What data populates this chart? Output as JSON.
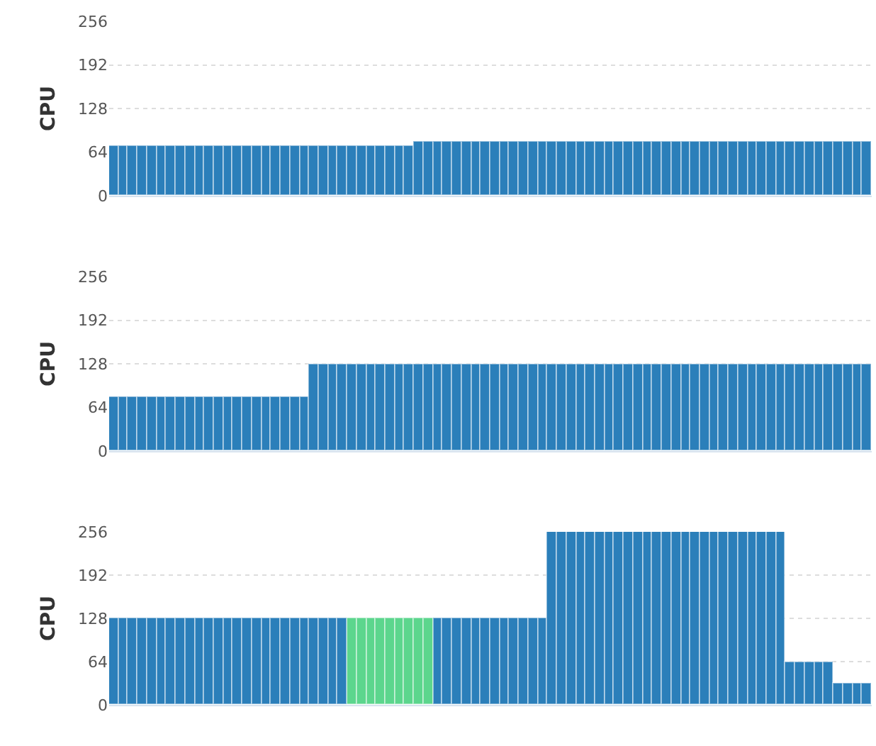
{
  "chart_data": [
    {
      "type": "bar",
      "ylabel": "CPU",
      "ylim": [
        0,
        256
      ],
      "yticks": [
        0,
        64,
        128,
        192,
        256
      ],
      "grid": "y",
      "tick_labels": "y",
      "categories": [
        null,
        null,
        null,
        null,
        null,
        null,
        null,
        null,
        null,
        null,
        null,
        null,
        null,
        null,
        null,
        null,
        null,
        null,
        null,
        null,
        null,
        null,
        null,
        null,
        null,
        null,
        null,
        null,
        null,
        null,
        null,
        null,
        null,
        null,
        null,
        null,
        null,
        null,
        null,
        null,
        null,
        null,
        null,
        null,
        null,
        null,
        null,
        null,
        null,
        null,
        null,
        null,
        null,
        null,
        null,
        null,
        null,
        null,
        null,
        null,
        null,
        null,
        null,
        null,
        null,
        null,
        null,
        null,
        null,
        null,
        null,
        null,
        null,
        null,
        null,
        null,
        null,
        null,
        null,
        null
      ],
      "series": [
        {
          "color": "#2b7fba",
          "values": [
            72,
            72,
            72,
            72,
            72,
            72,
            72,
            72,
            72,
            72,
            72,
            72,
            72,
            72,
            72,
            72,
            72,
            72,
            72,
            72,
            72,
            72,
            72,
            72,
            72,
            72,
            72,
            72,
            72,
            72,
            72,
            72,
            80,
            80,
            80,
            80,
            80,
            80,
            80,
            80,
            80,
            80,
            80,
            80,
            80,
            80,
            80,
            80,
            80,
            80,
            80,
            80,
            80,
            80,
            80,
            80,
            80,
            80,
            80,
            80,
            80,
            80,
            80,
            80,
            80,
            80,
            80,
            80,
            80,
            80,
            80,
            80,
            80,
            80,
            80,
            80,
            80,
            80,
            80,
            80
          ]
        }
      ]
    },
    {
      "type": "bar",
      "ylabel": "CPU",
      "ylim": [
        0,
        256
      ],
      "yticks": [
        0,
        64,
        128,
        192,
        256
      ],
      "grid": "y",
      "tick_labels": "y",
      "categories": [
        null,
        null,
        null,
        null,
        null,
        null,
        null,
        null,
        null,
        null,
        null,
        null,
        null,
        null,
        null,
        null,
        null,
        null,
        null,
        null,
        null,
        null,
        null,
        null,
        null,
        null,
        null,
        null,
        null,
        null,
        null,
        null,
        null,
        null,
        null,
        null,
        null,
        null,
        null,
        null,
        null,
        null,
        null,
        null,
        null,
        null,
        null,
        null,
        null,
        null,
        null,
        null,
        null,
        null,
        null,
        null,
        null,
        null,
        null,
        null,
        null,
        null,
        null,
        null,
        null,
        null,
        null,
        null,
        null,
        null,
        null,
        null,
        null,
        null,
        null,
        null,
        null,
        null,
        null,
        null
      ],
      "series": [
        {
          "color": "#2b7fba",
          "values": [
            80,
            80,
            80,
            80,
            80,
            80,
            80,
            80,
            80,
            80,
            80,
            80,
            80,
            80,
            80,
            80,
            80,
            80,
            80,
            80,
            80,
            128,
            128,
            128,
            128,
            128,
            128,
            128,
            128,
            128,
            128,
            128,
            128,
            128,
            128,
            128,
            128,
            128,
            128,
            128,
            128,
            128,
            128,
            128,
            128,
            128,
            128,
            128,
            128,
            128,
            128,
            128,
            128,
            128,
            128,
            128,
            128,
            128,
            128,
            128,
            128,
            128,
            128,
            128,
            128,
            128,
            128,
            128,
            128,
            128,
            128,
            128,
            128,
            128,
            128,
            128,
            128,
            128,
            128,
            128
          ]
        }
      ]
    },
    {
      "type": "bar",
      "stacked": true,
      "ylabel": "CPU",
      "ylim": [
        0,
        256
      ],
      "yticks": [
        0,
        64,
        128,
        192,
        256
      ],
      "grid": "y",
      "tick_labels": "y",
      "categories": [
        null,
        null,
        null,
        null,
        null,
        null,
        null,
        null,
        null,
        null,
        null,
        null,
        null,
        null,
        null,
        null,
        null,
        null,
        null,
        null,
        null,
        null,
        null,
        null,
        null,
        null,
        null,
        null,
        null,
        null,
        null,
        null,
        null,
        null,
        null,
        null,
        null,
        null,
        null,
        null,
        null,
        null,
        null,
        null,
        null,
        null,
        null,
        null,
        null,
        null,
        null,
        null,
        null,
        null,
        null,
        null,
        null,
        null,
        null,
        null,
        null,
        null,
        null,
        null,
        null,
        null,
        null,
        null,
        null,
        null,
        null,
        null,
        null,
        null,
        null,
        null,
        null,
        null,
        null,
        null
      ],
      "series": [
        {
          "color": "#5cd68d",
          "values": [
            null,
            null,
            null,
            null,
            null,
            null,
            null,
            null,
            null,
            null,
            null,
            null,
            null,
            null,
            null,
            null,
            null,
            null,
            null,
            null,
            null,
            null,
            null,
            null,
            null,
            128,
            128,
            128,
            128,
            128,
            128,
            128,
            128,
            128,
            null,
            null,
            null,
            null,
            null,
            null,
            null,
            null,
            null,
            null,
            null,
            null,
            null,
            null,
            null,
            null,
            null,
            null,
            null,
            null,
            null,
            null,
            null,
            null,
            null,
            null,
            null,
            null,
            null,
            null,
            null,
            null,
            null,
            null,
            null,
            null,
            null,
            null,
            null,
            null,
            null,
            null,
            null,
            null,
            null,
            null
          ]
        },
        {
          "color": "#2b7fba",
          "values": [
            128,
            128,
            128,
            128,
            128,
            128,
            128,
            128,
            128,
            128,
            128,
            128,
            128,
            128,
            128,
            128,
            128,
            128,
            128,
            128,
            128,
            128,
            128,
            128,
            128,
            null,
            null,
            null,
            null,
            null,
            null,
            null,
            null,
            null,
            128,
            128,
            128,
            128,
            128,
            128,
            128,
            128,
            128,
            128,
            128,
            128,
            256,
            256,
            256,
            256,
            256,
            256,
            256,
            256,
            256,
            256,
            256,
            256,
            256,
            256,
            256,
            256,
            256,
            256,
            256,
            256,
            256,
            256,
            256,
            256,
            256,
            64,
            64,
            64,
            64,
            64,
            32,
            32,
            32,
            32
          ]
        }
      ]
    }
  ]
}
